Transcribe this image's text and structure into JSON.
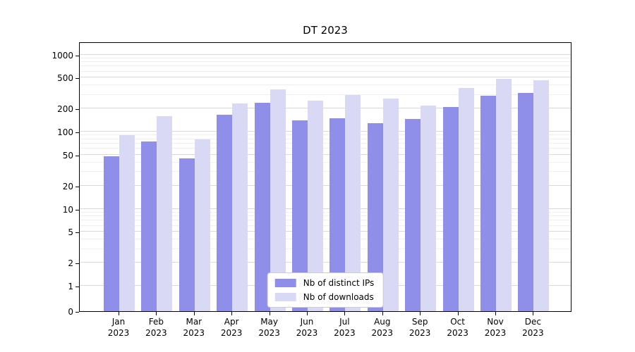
{
  "figure": {
    "background": "#ffffff"
  },
  "chart_data": {
    "type": "bar",
    "title": "DT 2023",
    "categories": [
      "Jan",
      "Feb",
      "Mar",
      "Apr",
      "May",
      "Jun",
      "Jul",
      "Aug",
      "Sep",
      "Oct",
      "Nov",
      "Dec"
    ],
    "x_year": "2023",
    "series": [
      {
        "name": "Nb of distinct IPs",
        "color": "#8f8fea",
        "values": [
          48,
          75,
          45,
          165,
          235,
          140,
          150,
          130,
          145,
          210,
          290,
          320
        ]
      },
      {
        "name": "Nb of downloads",
        "color": "#d9d9f6",
        "values": [
          90,
          160,
          80,
          230,
          350,
          250,
          300,
          270,
          220,
          370,
          480,
          460
        ]
      }
    ],
    "y_ticks": [
      0,
      1,
      2,
      5,
      10,
      20,
      50,
      100,
      200,
      500,
      1000
    ],
    "y_minor_ticks": [
      3,
      4,
      6,
      7,
      8,
      9,
      30,
      40,
      60,
      70,
      80,
      90,
      300,
      400,
      600,
      700,
      800,
      900
    ],
    "yscale": "symlog",
    "ylim": [
      0,
      1200
    ],
    "grid": true,
    "xlabel": "",
    "ylabel": "",
    "legend_position": "lower center"
  }
}
